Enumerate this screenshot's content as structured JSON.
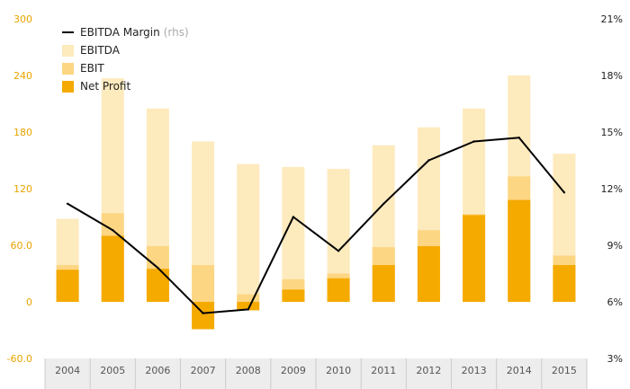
{
  "chart_data": {
    "type": "bar",
    "categories": [
      "2004",
      "2005",
      "2006",
      "2007",
      "2008",
      "2009",
      "2010",
      "2011",
      "2012",
      "2013",
      "2014",
      "2015"
    ],
    "series": [
      {
        "name": "EBITDA",
        "values": [
          88,
          237,
          205,
          170,
          146,
          143,
          141,
          166,
          185,
          205,
          240,
          157
        ]
      },
      {
        "name": "EBIT",
        "values": [
          39,
          94,
          59,
          39,
          8,
          24,
          30,
          58,
          76,
          93,
          133,
          49
        ]
      },
      {
        "name": "Net Profit",
        "values": [
          34,
          70,
          35,
          -29,
          -9,
          13,
          25,
          39,
          59,
          92,
          108,
          39
        ]
      },
      {
        "name": "EBITDA Margin",
        "unit_suffix": "(rhs)",
        "values": [
          11.2,
          9.8,
          7.8,
          5.4,
          5.6,
          10.5,
          8.7,
          11.2,
          13.5,
          14.5,
          14.7,
          11.8
        ]
      }
    ],
    "legend": {
      "position": "top-left",
      "items": [
        {
          "label": "EBITDA Margin",
          "suffix": "(rhs)",
          "color": "#000000",
          "kind": "line"
        },
        {
          "label": "EBITDA",
          "suffix": "",
          "color": "#FDEABD",
          "kind": "box"
        },
        {
          "label": "EBIT",
          "suffix": "",
          "color": "#FDD683",
          "kind": "box"
        },
        {
          "label": "Net Profit",
          "suffix": "",
          "color": "#F5AA00",
          "kind": "box"
        }
      ]
    },
    "left_axis": {
      "ylim": [
        -60,
        300
      ],
      "ticks": [
        "300",
        "240",
        "180",
        "120",
        "60.0",
        "0",
        "-60.0"
      ],
      "tick_color": "#E8A400"
    },
    "right_axis": {
      "ylim": [
        3,
        21
      ],
      "ticks": [
        "21%",
        "18%",
        "15%",
        "12%",
        "9%",
        "6%",
        "3%"
      ]
    },
    "grid": false,
    "colors": {
      "ebitda": "#FDEABD",
      "ebit": "#FDD683",
      "net_profit": "#F5AA00",
      "margin_line": "#000000",
      "axis_strip": "#EDEDED",
      "separator": "#CCCCCC"
    }
  }
}
